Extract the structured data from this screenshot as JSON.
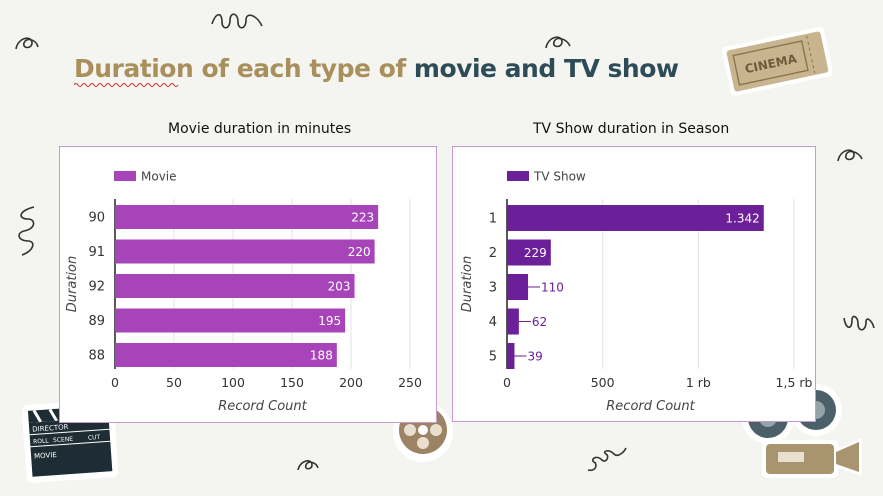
{
  "header": {
    "title_part1": "Duration of each type of",
    "title_part2": "movie and TV show"
  },
  "colors": {
    "movie": "#a744b9",
    "tvshow": "#6b1f98",
    "title_gold": "#a98f5c",
    "title_teal": "#2e4c57",
    "panel_border": "#c79ad0"
  },
  "stickers": {
    "cinema_ticket": "CINEMA",
    "clapper_labels": [
      "DIRECTOR",
      "ROLL",
      "SCENE",
      "CUT",
      "MOVIE"
    ]
  },
  "chart_data": [
    {
      "type": "bar",
      "orientation": "horizontal",
      "title": "Movie duration in minutes",
      "xlabel": "Record Count",
      "ylabel": "Duration",
      "categories": [
        "90",
        "91",
        "92",
        "89",
        "88"
      ],
      "series": [
        {
          "name": "Movie",
          "values": [
            223,
            220,
            203,
            195,
            188
          ]
        }
      ],
      "value_labels": [
        "223",
        "220",
        "203",
        "195",
        "188"
      ],
      "xlim": [
        0,
        250
      ],
      "xticks": [
        0,
        50,
        100,
        150,
        200,
        250
      ],
      "xtick_labels": [
        "0",
        "50",
        "100",
        "150",
        "200",
        "250"
      ],
      "legend_position": "top-left",
      "grid": true
    },
    {
      "type": "bar",
      "orientation": "horizontal",
      "title": "TV Show duration in Season",
      "xlabel": "Record Count",
      "ylabel": "Duration",
      "categories": [
        "1",
        "2",
        "3",
        "4",
        "5"
      ],
      "series": [
        {
          "name": "TV Show",
          "values": [
            1342,
            229,
            110,
            62,
            39
          ]
        }
      ],
      "value_labels": [
        "1.342",
        "229",
        "110",
        "62",
        "39"
      ],
      "xlim": [
        0,
        1500
      ],
      "xticks": [
        0,
        500,
        1000,
        1500
      ],
      "xtick_labels": [
        "0",
        "500",
        "1 rb",
        "1,5 rb"
      ],
      "legend_position": "top-left",
      "grid": true
    }
  ]
}
